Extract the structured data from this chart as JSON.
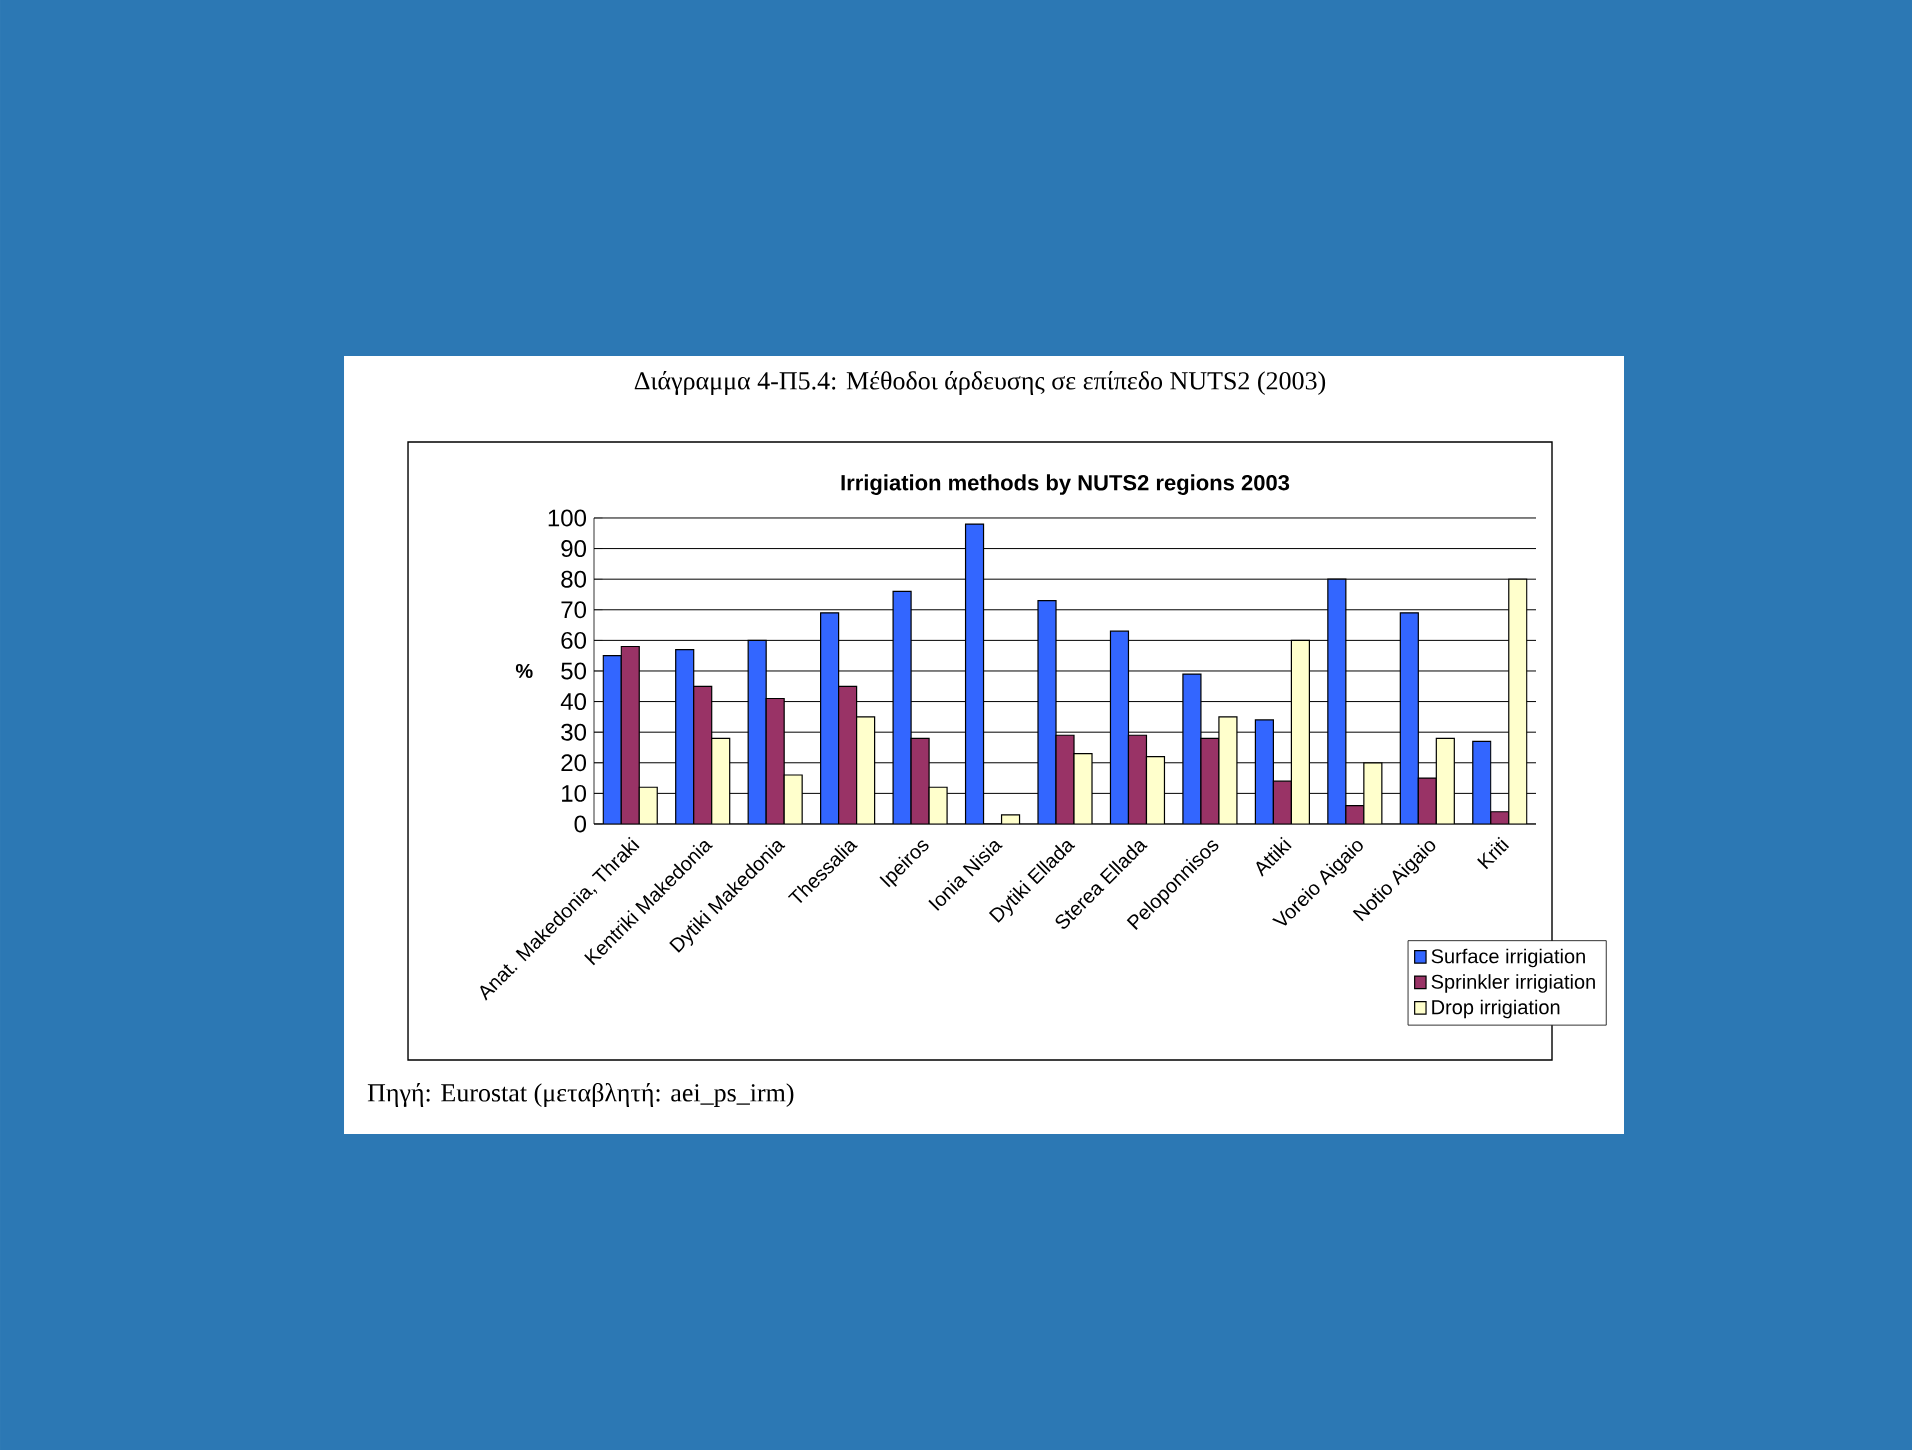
{
  "chart_data": {
    "type": "bar",
    "title": "Διάγραμμα 4-Π5.4:  Μέθοδοι άρδευσης σε επίπεδο NUTS2 (2003)",
    "subtitle": "Irrigiation methods by NUTS2 regions 2003",
    "ylabel": "%",
    "categories": [
      "Anat. Makedonia, Thraki",
      "Kentriki Makedonia",
      "Dytiki Makedonia",
      "Thessalia",
      "Ipeiros",
      "Ionia Nisia",
      "Dytiki Ellada",
      "Sterea Ellada",
      "Peloponnisos",
      "Attiki",
      "Voreio Aigaio",
      "Notio Aigaio",
      "Kriti"
    ],
    "series": [
      {
        "name": "Surface irrigiation",
        "color": "#3366ff",
        "values": [
          55,
          57,
          60,
          69,
          76,
          98,
          73,
          63,
          49,
          34,
          80,
          69,
          27
        ]
      },
      {
        "name": "Sprinkler irrigiation",
        "color": "#993366",
        "values": [
          58,
          45,
          41,
          45,
          28,
          0,
          29,
          29,
          28,
          14,
          6,
          15,
          4
        ]
      },
      {
        "name": "Drop irrigiation",
        "color": "#ffffcc",
        "values": [
          12,
          28,
          16,
          35,
          12,
          3,
          23,
          22,
          35,
          60,
          20,
          28,
          80
        ]
      }
    ],
    "ylim": [
      0,
      100
    ],
    "yticks": [
      0,
      10,
      20,
      30,
      40,
      50,
      60,
      70,
      80,
      90,
      100
    ],
    "grid": "y",
    "legend": "bottom right",
    "annotations": [
      "Πηγή: Eurostat (μεταβλητή: aei_ps_irm)"
    ]
  }
}
